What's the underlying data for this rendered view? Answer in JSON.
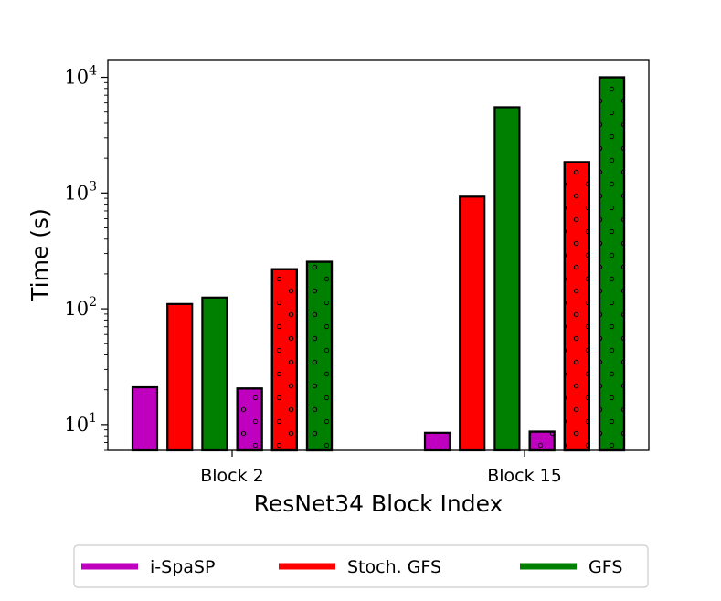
{
  "chart_data": {
    "type": "bar",
    "xlabel": "ResNet34 Block Index",
    "ylabel": "Time (s)",
    "yscale": "log",
    "ylim": [
      6,
      14000
    ],
    "yticks": [
      {
        "value": 10,
        "base": "10",
        "exp": "1"
      },
      {
        "value": 100,
        "base": "10",
        "exp": "2"
      },
      {
        "value": 1000,
        "base": "10",
        "exp": "3"
      },
      {
        "value": 10000,
        "base": "10",
        "exp": "4"
      }
    ],
    "categories": [
      "Block 2",
      "Block 15"
    ],
    "series": [
      {
        "name": "i-SpaSP",
        "color": "#bf00bf",
        "hatched": false,
        "values": [
          21,
          8.5
        ]
      },
      {
        "name": "Stoch. GFS",
        "color": "#ff0000",
        "hatched": false,
        "values": [
          110,
          930
        ]
      },
      {
        "name": "GFS",
        "color": "#008000",
        "hatched": false,
        "values": [
          125,
          5500
        ]
      },
      {
        "name": "",
        "color": "#bf00bf",
        "hatched": true,
        "values": [
          20.5,
          8.7
        ]
      },
      {
        "name": "",
        "color": "#ff0000",
        "hatched": true,
        "values": [
          220,
          1850
        ]
      },
      {
        "name": "",
        "color": "#008000",
        "hatched": true,
        "values": [
          255,
          10000
        ]
      }
    ],
    "grid": false,
    "legend": {
      "position": "bottom",
      "entries": [
        {
          "label": "i-SpaSP",
          "color": "#bf00bf"
        },
        {
          "label": "Stoch. GFS",
          "color": "#ff0000"
        },
        {
          "label": "GFS",
          "color": "#008000"
        }
      ]
    }
  }
}
